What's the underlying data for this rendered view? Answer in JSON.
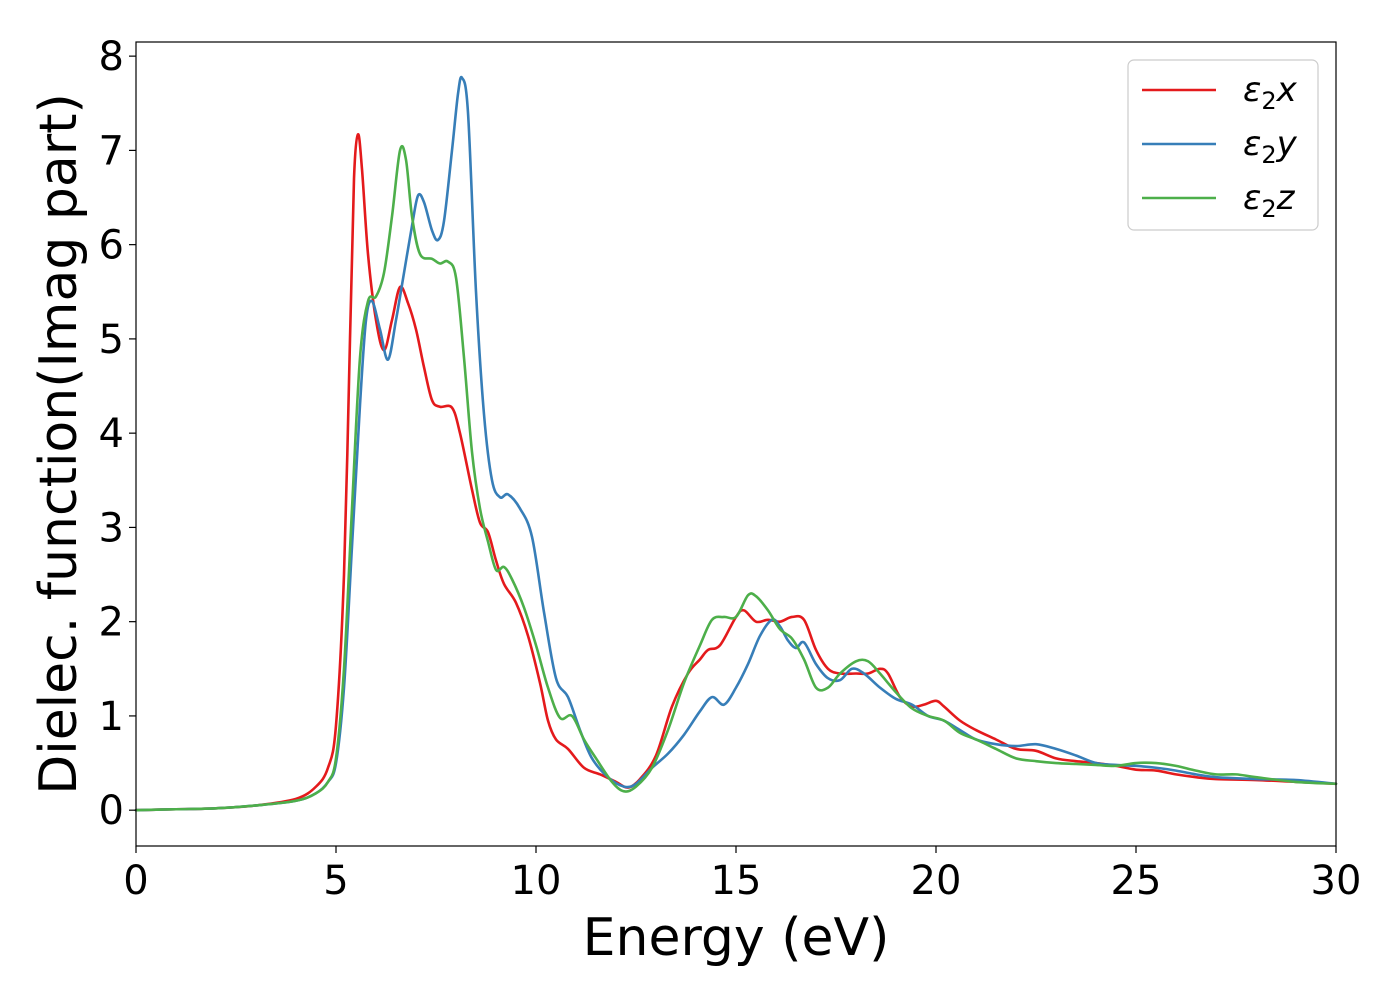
{
  "chart_data": {
    "type": "line",
    "title": "",
    "xlabel": "Energy (eV)",
    "ylabel": "Dielec. function(Imag part)",
    "xlim": [
      0,
      30
    ],
    "ylim": [
      -0.38,
      8.15
    ],
    "xticks": [
      0,
      5,
      10,
      15,
      20,
      25,
      30
    ],
    "yticks": [
      0,
      1,
      2,
      3,
      4,
      5,
      6,
      7,
      8
    ],
    "grid": false,
    "legend_position": "top-right",
    "series": [
      {
        "name": "ε₂x",
        "legend": {
          "symbol": "ε",
          "sub": "2",
          "axis": "x"
        },
        "color": "#e41a1c",
        "points": [
          [
            0,
            0
          ],
          [
            1,
            0.01
          ],
          [
            2,
            0.02
          ],
          [
            3,
            0.05
          ],
          [
            4,
            0.12
          ],
          [
            4.5,
            0.25
          ],
          [
            4.8,
            0.45
          ],
          [
            5.0,
            0.9
          ],
          [
            5.2,
            2.5
          ],
          [
            5.35,
            5.0
          ],
          [
            5.45,
            6.7
          ],
          [
            5.55,
            7.17
          ],
          [
            5.65,
            6.8
          ],
          [
            5.8,
            5.9
          ],
          [
            6.0,
            5.2
          ],
          [
            6.2,
            4.88
          ],
          [
            6.4,
            5.2
          ],
          [
            6.6,
            5.55
          ],
          [
            6.8,
            5.38
          ],
          [
            7.0,
            5.1
          ],
          [
            7.2,
            4.7
          ],
          [
            7.4,
            4.35
          ],
          [
            7.6,
            4.28
          ],
          [
            7.9,
            4.27
          ],
          [
            8.1,
            4.0
          ],
          [
            8.4,
            3.4
          ],
          [
            8.6,
            3.05
          ],
          [
            8.8,
            2.95
          ],
          [
            9.0,
            2.65
          ],
          [
            9.2,
            2.4
          ],
          [
            9.5,
            2.2
          ],
          [
            9.8,
            1.85
          ],
          [
            10.1,
            1.35
          ],
          [
            10.3,
            0.95
          ],
          [
            10.5,
            0.75
          ],
          [
            10.8,
            0.65
          ],
          [
            11.2,
            0.45
          ],
          [
            11.6,
            0.38
          ],
          [
            12.0,
            0.3
          ],
          [
            12.3,
            0.24
          ],
          [
            12.6,
            0.33
          ],
          [
            13.0,
            0.58
          ],
          [
            13.4,
            1.1
          ],
          [
            13.8,
            1.45
          ],
          [
            14.1,
            1.6
          ],
          [
            14.3,
            1.7
          ],
          [
            14.6,
            1.75
          ],
          [
            15.0,
            2.05
          ],
          [
            15.2,
            2.12
          ],
          [
            15.5,
            2.0
          ],
          [
            15.8,
            2.02
          ],
          [
            16.1,
            2.0
          ],
          [
            16.4,
            2.05
          ],
          [
            16.7,
            2.02
          ],
          [
            17.0,
            1.7
          ],
          [
            17.3,
            1.5
          ],
          [
            17.6,
            1.45
          ],
          [
            18.0,
            1.45
          ],
          [
            18.3,
            1.45
          ],
          [
            18.6,
            1.5
          ],
          [
            18.8,
            1.45
          ],
          [
            19.1,
            1.2
          ],
          [
            19.4,
            1.1
          ],
          [
            19.7,
            1.12
          ],
          [
            20.0,
            1.16
          ],
          [
            20.2,
            1.1
          ],
          [
            20.6,
            0.95
          ],
          [
            21.0,
            0.85
          ],
          [
            21.5,
            0.75
          ],
          [
            22.0,
            0.65
          ],
          [
            22.5,
            0.63
          ],
          [
            23.0,
            0.55
          ],
          [
            23.5,
            0.52
          ],
          [
            24.0,
            0.5
          ],
          [
            24.5,
            0.47
          ],
          [
            25.0,
            0.43
          ],
          [
            25.5,
            0.42
          ],
          [
            26.0,
            0.38
          ],
          [
            26.5,
            0.35
          ],
          [
            27.0,
            0.33
          ],
          [
            28.0,
            0.32
          ],
          [
            29.0,
            0.3
          ],
          [
            30,
            0.28
          ]
        ]
      },
      {
        "name": "ε₂y",
        "legend": {
          "symbol": "ε",
          "sub": "2",
          "axis": "y"
        },
        "color": "#377eb8",
        "points": [
          [
            0,
            0
          ],
          [
            1,
            0.01
          ],
          [
            2,
            0.02
          ],
          [
            3,
            0.05
          ],
          [
            4,
            0.1
          ],
          [
            4.5,
            0.18
          ],
          [
            4.8,
            0.3
          ],
          [
            5.0,
            0.5
          ],
          [
            5.2,
            1.3
          ],
          [
            5.4,
            2.8
          ],
          [
            5.6,
            4.3
          ],
          [
            5.75,
            5.2
          ],
          [
            5.9,
            5.4
          ],
          [
            6.1,
            5.1
          ],
          [
            6.3,
            4.78
          ],
          [
            6.5,
            5.2
          ],
          [
            6.7,
            5.7
          ],
          [
            6.9,
            6.2
          ],
          [
            7.05,
            6.52
          ],
          [
            7.2,
            6.45
          ],
          [
            7.4,
            6.15
          ],
          [
            7.55,
            6.05
          ],
          [
            7.7,
            6.25
          ],
          [
            7.9,
            7.0
          ],
          [
            8.05,
            7.6
          ],
          [
            8.15,
            7.77
          ],
          [
            8.3,
            7.4
          ],
          [
            8.5,
            5.5
          ],
          [
            8.7,
            4.2
          ],
          [
            8.9,
            3.5
          ],
          [
            9.1,
            3.32
          ],
          [
            9.3,
            3.35
          ],
          [
            9.6,
            3.2
          ],
          [
            9.9,
            2.9
          ],
          [
            10.2,
            2.1
          ],
          [
            10.5,
            1.4
          ],
          [
            10.8,
            1.2
          ],
          [
            11.1,
            0.85
          ],
          [
            11.4,
            0.55
          ],
          [
            11.8,
            0.35
          ],
          [
            12.2,
            0.25
          ],
          [
            12.5,
            0.28
          ],
          [
            12.9,
            0.45
          ],
          [
            13.3,
            0.6
          ],
          [
            13.7,
            0.8
          ],
          [
            14.1,
            1.05
          ],
          [
            14.4,
            1.2
          ],
          [
            14.7,
            1.12
          ],
          [
            15.0,
            1.3
          ],
          [
            15.3,
            1.55
          ],
          [
            15.6,
            1.85
          ],
          [
            15.9,
            2.02
          ],
          [
            16.1,
            1.95
          ],
          [
            16.3,
            1.8
          ],
          [
            16.5,
            1.72
          ],
          [
            16.7,
            1.78
          ],
          [
            17.0,
            1.55
          ],
          [
            17.3,
            1.4
          ],
          [
            17.6,
            1.38
          ],
          [
            17.9,
            1.5
          ],
          [
            18.2,
            1.45
          ],
          [
            18.6,
            1.3
          ],
          [
            19.0,
            1.18
          ],
          [
            19.4,
            1.12
          ],
          [
            19.8,
            1.0
          ],
          [
            20.2,
            0.95
          ],
          [
            20.6,
            0.85
          ],
          [
            21.0,
            0.75
          ],
          [
            21.5,
            0.7
          ],
          [
            22.0,
            0.68
          ],
          [
            22.5,
            0.7
          ],
          [
            23.0,
            0.65
          ],
          [
            23.5,
            0.58
          ],
          [
            24.0,
            0.5
          ],
          [
            24.5,
            0.48
          ],
          [
            25.0,
            0.47
          ],
          [
            25.5,
            0.45
          ],
          [
            26.0,
            0.42
          ],
          [
            26.5,
            0.38
          ],
          [
            27.0,
            0.35
          ],
          [
            28.0,
            0.33
          ],
          [
            29.0,
            0.32
          ],
          [
            30,
            0.28
          ]
        ]
      },
      {
        "name": "ε₂z",
        "legend": {
          "symbol": "ε",
          "sub": "2",
          "axis": "z"
        },
        "color": "#4daf4a",
        "points": [
          [
            0,
            0
          ],
          [
            1,
            0.01
          ],
          [
            2,
            0.02
          ],
          [
            3,
            0.05
          ],
          [
            4,
            0.1
          ],
          [
            4.5,
            0.18
          ],
          [
            4.8,
            0.3
          ],
          [
            5.0,
            0.55
          ],
          [
            5.2,
            1.5
          ],
          [
            5.4,
            3.2
          ],
          [
            5.6,
            4.8
          ],
          [
            5.8,
            5.4
          ],
          [
            6.0,
            5.45
          ],
          [
            6.2,
            5.7
          ],
          [
            6.4,
            6.3
          ],
          [
            6.6,
            7.0
          ],
          [
            6.75,
            6.9
          ],
          [
            6.9,
            6.3
          ],
          [
            7.1,
            5.9
          ],
          [
            7.4,
            5.85
          ],
          [
            7.6,
            5.8
          ],
          [
            7.8,
            5.82
          ],
          [
            8.0,
            5.65
          ],
          [
            8.2,
            4.8
          ],
          [
            8.4,
            3.8
          ],
          [
            8.6,
            3.2
          ],
          [
            8.8,
            2.85
          ],
          [
            9.0,
            2.55
          ],
          [
            9.2,
            2.58
          ],
          [
            9.4,
            2.45
          ],
          [
            9.7,
            2.15
          ],
          [
            10.0,
            1.75
          ],
          [
            10.3,
            1.3
          ],
          [
            10.6,
            0.98
          ],
          [
            10.9,
            1.0
          ],
          [
            11.2,
            0.75
          ],
          [
            11.5,
            0.55
          ],
          [
            11.9,
            0.3
          ],
          [
            12.2,
            0.2
          ],
          [
            12.5,
            0.25
          ],
          [
            12.9,
            0.45
          ],
          [
            13.3,
            0.85
          ],
          [
            13.7,
            1.35
          ],
          [
            14.1,
            1.75
          ],
          [
            14.4,
            2.02
          ],
          [
            14.7,
            2.05
          ],
          [
            15.0,
            2.05
          ],
          [
            15.3,
            2.28
          ],
          [
            15.5,
            2.27
          ],
          [
            15.8,
            2.12
          ],
          [
            16.1,
            1.92
          ],
          [
            16.4,
            1.82
          ],
          [
            16.7,
            1.6
          ],
          [
            17.0,
            1.3
          ],
          [
            17.3,
            1.3
          ],
          [
            17.6,
            1.45
          ],
          [
            18.0,
            1.58
          ],
          [
            18.3,
            1.58
          ],
          [
            18.6,
            1.45
          ],
          [
            19.0,
            1.25
          ],
          [
            19.4,
            1.08
          ],
          [
            19.8,
            1.0
          ],
          [
            20.2,
            0.95
          ],
          [
            20.6,
            0.82
          ],
          [
            21.0,
            0.75
          ],
          [
            21.5,
            0.65
          ],
          [
            22.0,
            0.55
          ],
          [
            22.5,
            0.52
          ],
          [
            23.0,
            0.5
          ],
          [
            23.5,
            0.49
          ],
          [
            24.0,
            0.48
          ],
          [
            24.5,
            0.47
          ],
          [
            25.0,
            0.5
          ],
          [
            25.5,
            0.5
          ],
          [
            26.0,
            0.47
          ],
          [
            26.5,
            0.42
          ],
          [
            27.0,
            0.38
          ],
          [
            27.5,
            0.38
          ],
          [
            28.0,
            0.35
          ],
          [
            29.0,
            0.3
          ],
          [
            30,
            0.28
          ]
        ]
      }
    ]
  }
}
